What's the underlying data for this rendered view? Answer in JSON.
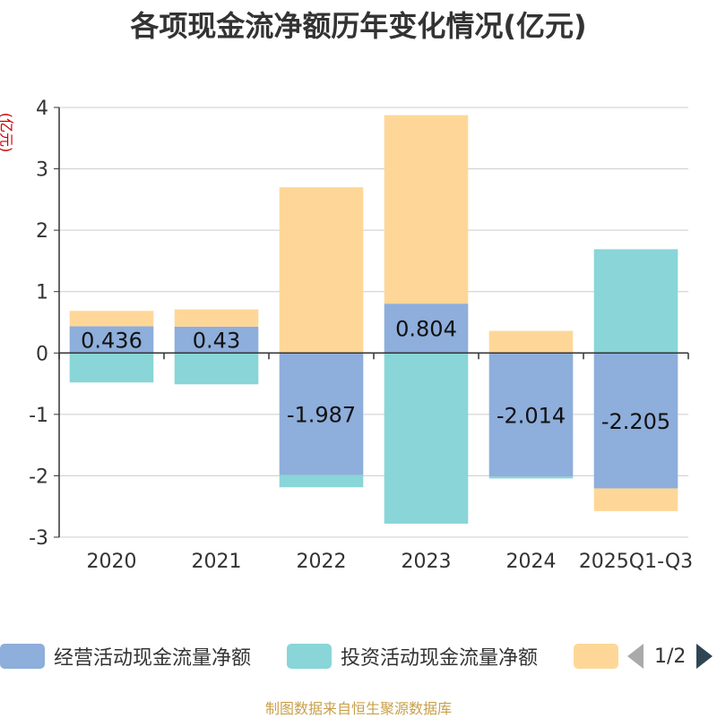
{
  "title": "各项现金流净额历年变化情况(亿元)",
  "y_unit": "(亿元)",
  "source": "制图数据来自恒生聚源数据库",
  "legend": {
    "items": [
      {
        "label": "经营活动现金流量净额",
        "color": "#8eaedb"
      },
      {
        "label": "投资活动现金流量净额",
        "color": "#89d5d8"
      },
      {
        "label": "",
        "color": "#fed798"
      }
    ],
    "page": "1/2"
  },
  "chart_data": {
    "type": "bar",
    "stacked": true,
    "title": "各项现金流净额历年变化情况(亿元)",
    "ylabel": "(亿元)",
    "ylim": [
      -3,
      4
    ],
    "yticks": [
      -3,
      -2,
      -1,
      0,
      1,
      2,
      3,
      4
    ],
    "categories": [
      "2020",
      "2021",
      "2022",
      "2023",
      "2024",
      "2025Q1-Q3"
    ],
    "series": [
      {
        "name": "经营活动现金流量净额",
        "color": "#8eaedb",
        "values": [
          0.436,
          0.43,
          -1.987,
          0.804,
          -2.014,
          -2.205
        ],
        "labels": [
          "0.436",
          "0.43",
          "-1.987",
          "0.804",
          "-2.014",
          "-2.205"
        ]
      },
      {
        "name": "投资活动现金流量净额",
        "color": "#89d5d8",
        "values": [
          -0.48,
          -0.51,
          -0.2,
          -2.78,
          -0.03,
          1.69
        ]
      },
      {
        "name": "",
        "color": "#fed798",
        "values": [
          0.25,
          0.28,
          2.7,
          3.07,
          0.36,
          -0.37
        ]
      }
    ]
  }
}
